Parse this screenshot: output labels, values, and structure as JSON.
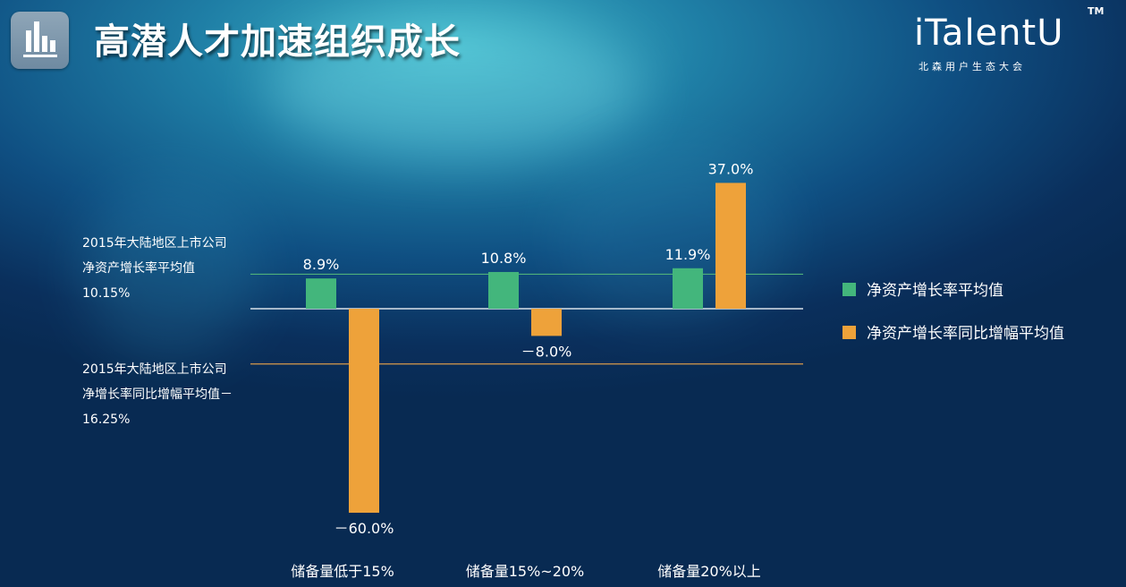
{
  "header": {
    "title": "高潜人才加速组织成长",
    "app_icon": "bar-chart-icon"
  },
  "logo": {
    "text": "iTalentU",
    "tm": "TM",
    "subtitle": "北森用户生态大会"
  },
  "colors": {
    "green": "#43b67c",
    "orange": "#eea23a",
    "ref_green_line": "#4fb07a",
    "ref_orange_line": "#d89a4a",
    "zero_line": "#d9e2ea"
  },
  "reference_lines": [
    {
      "text": "2015年大陆地区上市公司净资产增长率平均值 10.15%",
      "value": 10.15,
      "series": "净资产增长率平均值"
    },
    {
      "text": "2015年大陆地区上市公司净增长率同比增幅平均值－16.25%",
      "value": -16.25,
      "series": "净资产增长率同比增幅平均值"
    }
  ],
  "chart_data": {
    "type": "bar",
    "categories": [
      "储备量低于15%",
      "储备量15%~20%",
      "储备量20%以上"
    ],
    "series": [
      {
        "name": "净资产增长率平均值",
        "values": [
          8.9,
          10.8,
          11.9
        ],
        "labels": [
          "8.9%",
          "10.8%",
          "11.9%"
        ]
      },
      {
        "name": "净资产增长率同比增幅平均值",
        "values": [
          -60.0,
          -8.0,
          37.0
        ],
        "labels": [
          "－60.0%",
          "－8.0%",
          "37.0%"
        ]
      }
    ],
    "reference_values": [
      10.15,
      -16.25
    ],
    "title": "",
    "xlabel": "",
    "ylabel": "",
    "ylim": [
      -60,
      37
    ],
    "grid": false,
    "legend_position": "right"
  }
}
